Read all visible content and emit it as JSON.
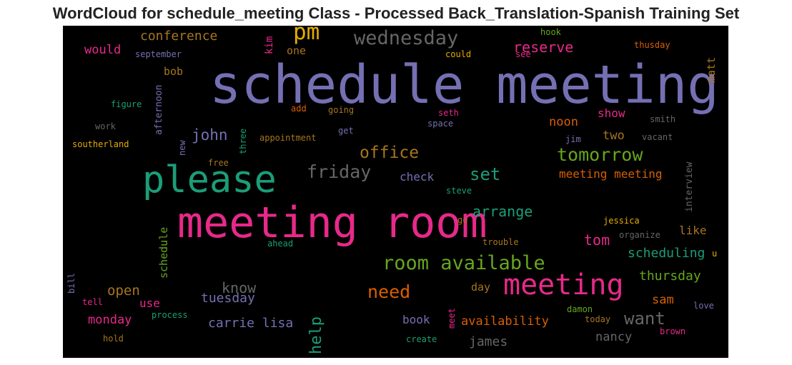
{
  "title": "WordCloud for schedule_meeting Class - Processed Back_Translation-Spanish Training Set",
  "colors": {
    "purple": "#7570b3",
    "pink": "#e7298a",
    "green": "#1b9e77",
    "orange": "#d95f02",
    "olive": "#66a61e",
    "gold": "#e6ab02",
    "brown": "#a6761d",
    "gray": "#666666"
  },
  "words": [
    {
      "text": "schedule meeting",
      "color": "purple"
    },
    {
      "text": "meeting room",
      "color": "pink"
    },
    {
      "text": "please",
      "color": "green"
    },
    {
      "text": "meeting",
      "color": "pink"
    },
    {
      "text": "pm",
      "color": "gold"
    },
    {
      "text": "wednesday",
      "color": "gray"
    },
    {
      "text": "room available",
      "color": "olive"
    },
    {
      "text": "tomorrow",
      "color": "olive"
    },
    {
      "text": "friday",
      "color": "gray"
    },
    {
      "text": "office",
      "color": "brown"
    },
    {
      "text": "need",
      "color": "orange"
    },
    {
      "text": "want",
      "color": "gray"
    },
    {
      "text": "set",
      "color": "green"
    },
    {
      "text": "help",
      "color": "green"
    },
    {
      "text": "john",
      "color": "purple"
    },
    {
      "text": "arrange",
      "color": "green"
    },
    {
      "text": "reserve",
      "color": "pink"
    },
    {
      "text": "know",
      "color": "gray"
    },
    {
      "text": "conference",
      "color": "brown"
    },
    {
      "text": "carrie lisa",
      "color": "purple"
    },
    {
      "text": "scheduling",
      "color": "green"
    },
    {
      "text": "thursday",
      "color": "olive"
    },
    {
      "text": "meeting meeting",
      "color": "orange"
    },
    {
      "text": "tom",
      "color": "pink"
    },
    {
      "text": "would",
      "color": "pink"
    },
    {
      "text": "open",
      "color": "brown"
    },
    {
      "text": "tuesday",
      "color": "purple"
    },
    {
      "text": "monday",
      "color": "pink"
    },
    {
      "text": "james",
      "color": "gray"
    },
    {
      "text": "availability",
      "color": "orange"
    },
    {
      "text": "nancy",
      "color": "gray"
    },
    {
      "text": "sam",
      "color": "orange"
    },
    {
      "text": "noon",
      "color": "orange"
    },
    {
      "text": "two",
      "color": "brown"
    },
    {
      "text": "show",
      "color": "pink"
    },
    {
      "text": "check",
      "color": "purple"
    },
    {
      "text": "book",
      "color": "purple"
    },
    {
      "text": "like",
      "color": "brown"
    },
    {
      "text": "bob",
      "color": "brown"
    },
    {
      "text": "use",
      "color": "pink"
    },
    {
      "text": "day",
      "color": "brown"
    },
    {
      "text": "schedule",
      "color": "olive"
    },
    {
      "text": "matt",
      "color": "brown"
    },
    {
      "text": "one",
      "color": "brown"
    },
    {
      "text": "kim",
      "color": "pink"
    },
    {
      "text": "interview",
      "color": "gray"
    },
    {
      "text": "afternoon",
      "color": "purple"
    },
    {
      "text": "september",
      "color": "purple"
    },
    {
      "text": "hook",
      "color": "olive"
    },
    {
      "text": "thusday",
      "color": "orange"
    },
    {
      "text": "could",
      "color": "gold"
    },
    {
      "text": "see",
      "color": "pink"
    },
    {
      "text": "figure",
      "color": "green"
    },
    {
      "text": "add",
      "color": "orange"
    },
    {
      "text": "going",
      "color": "brown"
    },
    {
      "text": "seth",
      "color": "pink"
    },
    {
      "text": "space",
      "color": "purple"
    },
    {
      "text": "smith",
      "color": "gray"
    },
    {
      "text": "work",
      "color": "gray"
    },
    {
      "text": "get",
      "color": "purple"
    },
    {
      "text": "three",
      "color": "green"
    },
    {
      "text": "new",
      "color": "purple"
    },
    {
      "text": "jim",
      "color": "purple"
    },
    {
      "text": "vacant",
      "color": "gray"
    },
    {
      "text": "southerland",
      "color": "gold"
    },
    {
      "text": "appointment",
      "color": "brown"
    },
    {
      "text": "free",
      "color": "brown"
    },
    {
      "text": "steve",
      "color": "green"
    },
    {
      "text": "jessica",
      "color": "gold"
    },
    {
      "text": "go",
      "color": "brown"
    },
    {
      "text": "organize",
      "color": "gray"
    },
    {
      "text": "trouble",
      "color": "brown"
    },
    {
      "text": "ahead",
      "color": "green"
    },
    {
      "text": "u",
      "color": "gold"
    },
    {
      "text": "bill",
      "color": "purple"
    },
    {
      "text": "tell",
      "color": "pink"
    },
    {
      "text": "process",
      "color": "green"
    },
    {
      "text": "meet",
      "color": "pink"
    },
    {
      "text": "damon",
      "color": "olive"
    },
    {
      "text": "today",
      "color": "brown"
    },
    {
      "text": "love",
      "color": "purple"
    },
    {
      "text": "brown",
      "color": "pink"
    },
    {
      "text": "hold",
      "color": "brown"
    },
    {
      "text": "create",
      "color": "green"
    }
  ]
}
